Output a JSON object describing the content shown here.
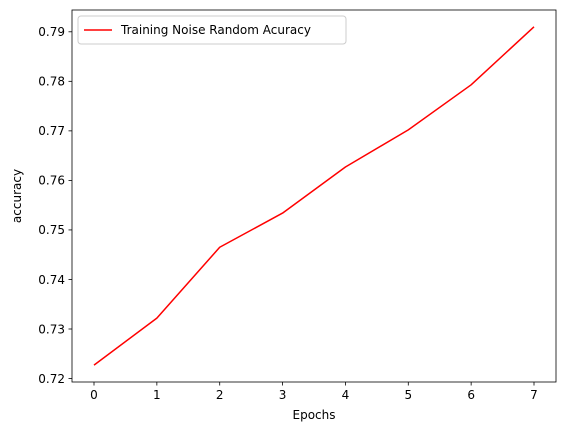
{
  "chart_data": {
    "type": "line",
    "title": "",
    "xlabel": "Epochs",
    "ylabel": "accuracy",
    "x": [
      0,
      1,
      2,
      3,
      4,
      5,
      6,
      7
    ],
    "series": [
      {
        "name": "Training Noise Random Acuracy",
        "color": "#ff0000",
        "values": [
          0.7227,
          0.7322,
          0.7465,
          0.7534,
          0.7627,
          0.7702,
          0.7793,
          0.791
        ]
      }
    ],
    "xlim": [
      -0.35,
      7.35
    ],
    "ylim": [
      0.7193,
      0.7944
    ],
    "xticks": [
      0,
      1,
      2,
      3,
      4,
      5,
      6,
      7
    ],
    "yticks": [
      0.72,
      0.73,
      0.74,
      0.75,
      0.76,
      0.77,
      0.78,
      0.79
    ],
    "ytick_labels": [
      "0.72",
      "0.73",
      "0.74",
      "0.75",
      "0.76",
      "0.77",
      "0.78",
      "0.79"
    ],
    "grid": false,
    "legend_position": "top-left"
  }
}
